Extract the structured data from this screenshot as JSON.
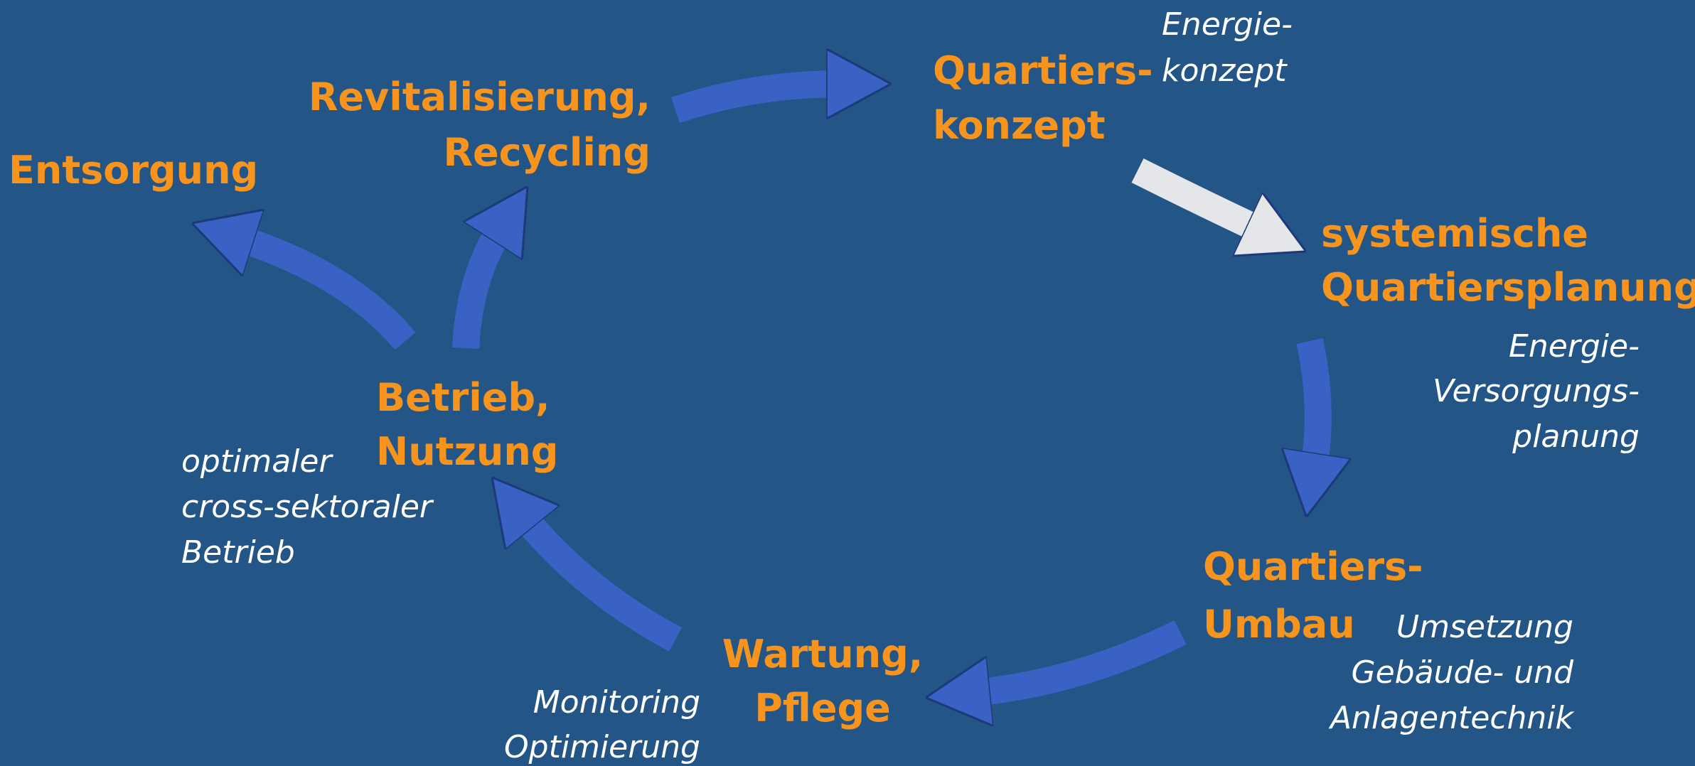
{
  "nodes": [
    {
      "lines": [
        "Quartiers-",
        "konzept"
      ]
    },
    {
      "lines": [
        "systemische",
        "Quartiersplanung"
      ]
    },
    {
      "lines": [
        "Quartiers-",
        "Umbau"
      ]
    },
    {
      "lines": [
        "Wartung,",
        "Pflege"
      ]
    },
    {
      "lines": [
        "Betrieb,",
        "Nutzung"
      ]
    },
    {
      "lines": [
        "Revitalisierung,",
        "Recycling"
      ]
    },
    {
      "lines": [
        "Entsorgung"
      ]
    }
  ],
  "notes": [
    {
      "lines": [
        "Energie-",
        "konzept"
      ]
    },
    {
      "lines": [
        "Energie-",
        "Versorgungs-",
        "planung"
      ]
    },
    {
      "lines": [
        "Umsetzung",
        "Gebäude- und",
        "Anlagentechnik"
      ]
    },
    {
      "lines": [
        "Monitoring",
        "Optimierung"
      ]
    },
    {
      "lines": [
        "optimaler",
        "cross-sektoraler",
        "Betrieb"
      ]
    }
  ]
}
